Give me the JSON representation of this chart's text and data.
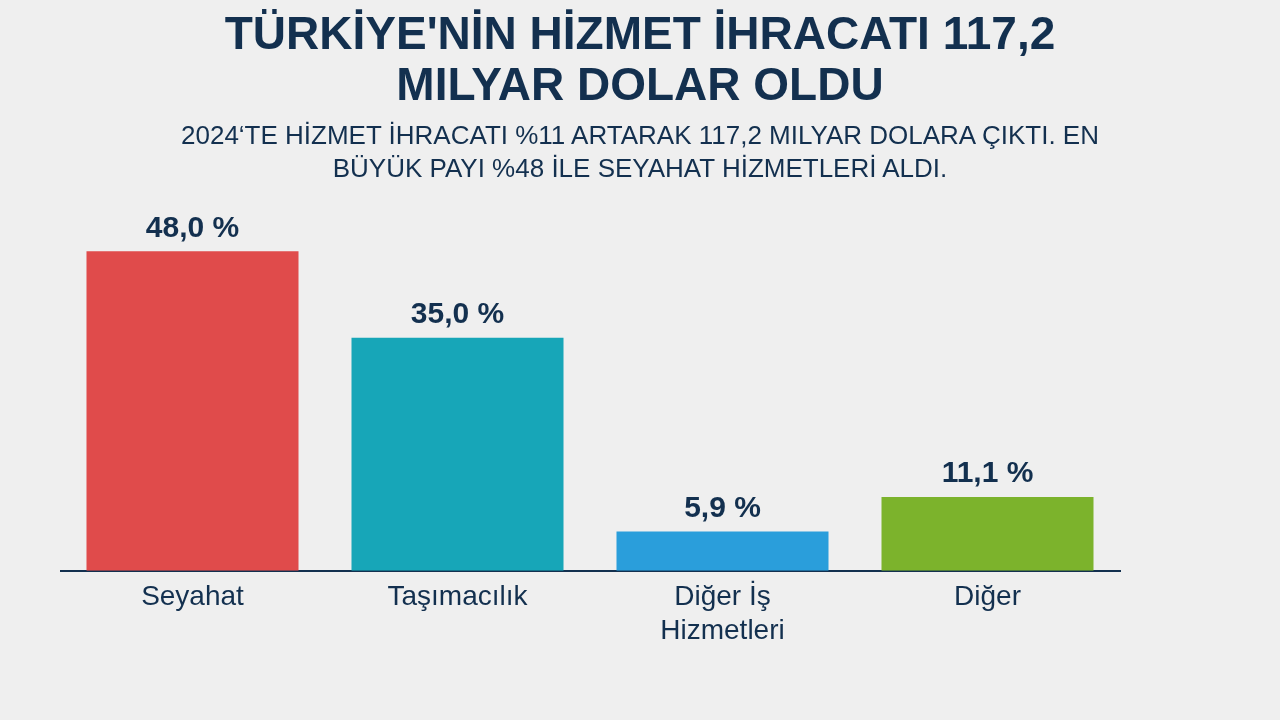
{
  "chart_data": {
    "type": "bar",
    "title": "TÜRKİYE'NİN HİZMET İHRACATI 117,2 MILYAR DOLAR OLDU",
    "subtitle": "2024‘TE HİZMET İHRACATI %11 ARTARAK 117,2 MILYAR DOLARA ÇIKTI. EN BÜYÜK PAYI %48 İLE SEYAHAT HİZMETLERİ ALDI.",
    "categories": [
      "Seyahat",
      "Taşımacılık",
      "Diğer İş Hizmetleri",
      "Diğer"
    ],
    "values": [
      48.0,
      35.0,
      5.9,
      11.1
    ],
    "colors": [
      "#e04b4b",
      "#17a6b8",
      "#2a9edb",
      "#7cb32c"
    ],
    "value_labels": [
      "48,0 %",
      "35,0 %",
      "5,9 %",
      "11,1 %"
    ],
    "grid": false,
    "legend": false
  }
}
